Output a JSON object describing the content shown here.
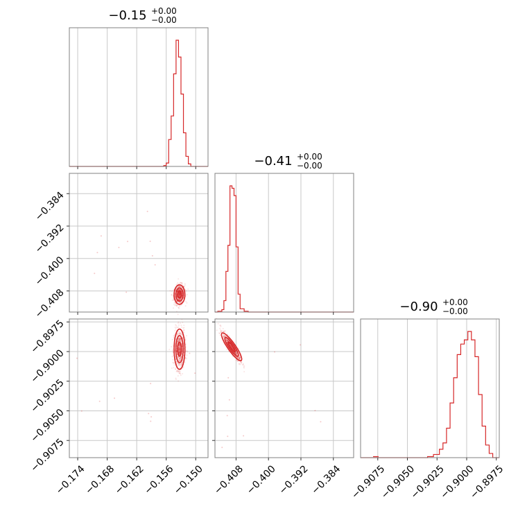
{
  "chart_data": {
    "type": "corner",
    "color": "#d62728",
    "params": [
      {
        "lim": [
          -0.1757,
          -0.1475
        ],
        "ticks": [
          -0.174,
          -0.168,
          -0.162,
          -0.156,
          -0.15
        ],
        "tick_labels": [
          "−0.174",
          "−0.168",
          "−0.162",
          "−0.156",
          "−0.150"
        ],
        "title": {
          "main": "−0.15",
          "sup": "+0.00",
          "sub": "−0.00"
        }
      },
      {
        "lim": [
          -0.4132,
          -0.379
        ],
        "ticks": [
          -0.408,
          -0.4,
          -0.392,
          -0.384
        ],
        "tick_labels": [
          "−0.408",
          "−0.400",
          "−0.392",
          "−0.384"
        ],
        "title": {
          "main": "−0.41",
          "sup": "+0.00",
          "sub": "−0.00"
        }
      },
      {
        "lim": [
          -0.90895,
          -0.89725
        ],
        "ticks": [
          -0.9075,
          -0.905,
          -0.9025,
          -0.9,
          -0.8975
        ],
        "tick_labels": [
          "−0.9075",
          "−0.9050",
          "−0.9025",
          "−0.9000",
          "−0.8975"
        ],
        "title": {
          "main": "−0.90",
          "sup": "+0.00",
          "sub": "−0.00"
        }
      }
    ],
    "histograms": [
      {
        "param": 0,
        "edges": [
          -0.1565,
          -0.156,
          -0.1555,
          -0.155,
          -0.1545,
          -0.154,
          -0.1535,
          -0.153,
          -0.1525,
          -0.152,
          -0.1515,
          -0.151
        ],
        "counts": [
          1,
          4,
          32,
          60,
          110,
          150,
          130,
          86,
          40,
          12,
          3
        ]
      },
      {
        "param": 1,
        "edges": [
          -0.4125,
          -0.4115,
          -0.411,
          -0.4105,
          -0.41,
          -0.4095,
          -0.409,
          -0.4085,
          -0.408,
          -0.4075,
          -0.407,
          -0.406,
          -0.405,
          -0.404,
          -0.403
        ],
        "counts": [
          1,
          3,
          14,
          50,
          82,
          155,
          152,
          143,
          80,
          22,
          4,
          1,
          0,
          0
        ]
      },
      {
        "param": 2,
        "edges": [
          -0.9033,
          -0.9028,
          -0.9023,
          -0.902,
          -0.9017,
          -0.9014,
          -0.9011,
          -0.9008,
          -0.9005,
          -0.9002,
          -0.8999,
          -0.8996,
          -0.8993,
          -0.899,
          -0.8987,
          -0.8984,
          -0.8981,
          -0.8978
        ],
        "counts": [
          1,
          3,
          8,
          14,
          28,
          52,
          76,
          98,
          108,
          112,
          120,
          112,
          96,
          60,
          30,
          12,
          4
        ]
      }
    ],
    "hist_peaks": [
      150,
      155,
      120
    ],
    "scatter_2d": [
      {
        "x": 0,
        "y": 1,
        "center": [
          -0.1533,
          -0.4089
        ],
        "sx": 0.00055,
        "sy": 0.0012,
        "rho": 0.1
      },
      {
        "x": 0,
        "y": 2,
        "center": [
          -0.1533,
          -0.8998
        ],
        "sx": 0.00055,
        "sy": 0.00085,
        "rho": 0.05
      },
      {
        "x": 1,
        "y": 2,
        "center": [
          -0.4091,
          -0.8996
        ],
        "sx": 0.0011,
        "sy": 0.0006,
        "rho": -0.9
      }
    ]
  }
}
